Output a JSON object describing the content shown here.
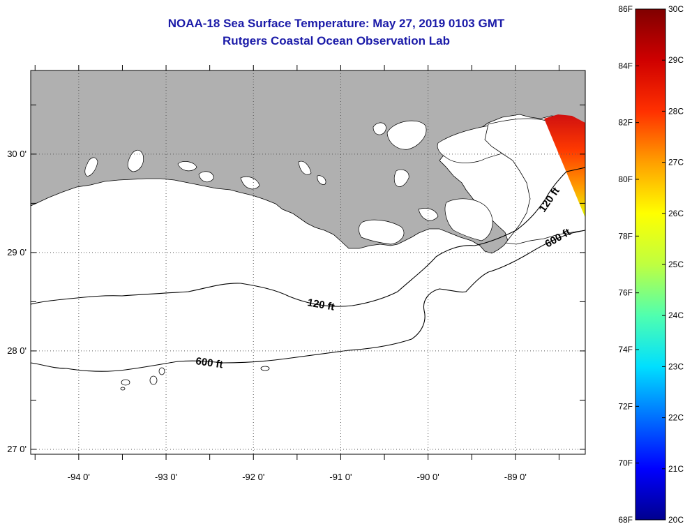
{
  "title": {
    "line1": "NOAA-18 Sea Surface Temperature:  May 27, 2019 0103 GMT",
    "line2": "Rutgers Coastal Ocean Observation Lab"
  },
  "map": {
    "lon_range": [
      -94.55,
      -88.2
    ],
    "lat_range": [
      26.95,
      30.85
    ],
    "lon_ticks": [
      {
        "value": -94,
        "label": "-94 0'"
      },
      {
        "value": -93,
        "label": "-93 0'"
      },
      {
        "value": -92,
        "label": "-92 0'"
      },
      {
        "value": -91,
        "label": "-91 0'"
      },
      {
        "value": -90,
        "label": "-90 0'"
      },
      {
        "value": -89,
        "label": "-89 0'"
      }
    ],
    "lat_ticks": [
      {
        "value": 30,
        "label": "30 0'"
      },
      {
        "value": 29,
        "label": "29 0'"
      },
      {
        "value": 28,
        "label": "28 0'"
      },
      {
        "value": 27,
        "label": "27 0'"
      }
    ],
    "land_color": "#b0b0b0",
    "contours": [
      {
        "name": "120 ft",
        "label": "120 ft"
      },
      {
        "name": "600 ft",
        "label": "600 ft"
      }
    ]
  },
  "colorbar": {
    "fahrenheit": [
      {
        "value": 86,
        "label": "86F"
      },
      {
        "value": 84,
        "label": "84F"
      },
      {
        "value": 82,
        "label": "82F"
      },
      {
        "value": 80,
        "label": "80F"
      },
      {
        "value": 78,
        "label": "78F"
      },
      {
        "value": 76,
        "label": "76F"
      },
      {
        "value": 74,
        "label": "74F"
      },
      {
        "value": 72,
        "label": "72F"
      },
      {
        "value": 70,
        "label": "70F"
      },
      {
        "value": 68,
        "label": "68F"
      }
    ],
    "celsius": [
      {
        "value": 30,
        "label": "30C"
      },
      {
        "value": 29,
        "label": "29C"
      },
      {
        "value": 28,
        "label": "28C"
      },
      {
        "value": 27,
        "label": "27C"
      },
      {
        "value": 26,
        "label": "26C"
      },
      {
        "value": 25,
        "label": "25C"
      },
      {
        "value": 24,
        "label": "24C"
      },
      {
        "value": 23,
        "label": "23C"
      },
      {
        "value": 22,
        "label": "22C"
      },
      {
        "value": 21,
        "label": "21C"
      },
      {
        "value": 20,
        "label": "20C"
      }
    ],
    "range_c": [
      20,
      30
    ],
    "colors": [
      "#00008f",
      "#0000ff",
      "#0070ff",
      "#00dfff",
      "#50ffaf",
      "#bfff40",
      "#ffff00",
      "#ff9f00",
      "#ff3000",
      "#cf0000",
      "#800000"
    ]
  }
}
